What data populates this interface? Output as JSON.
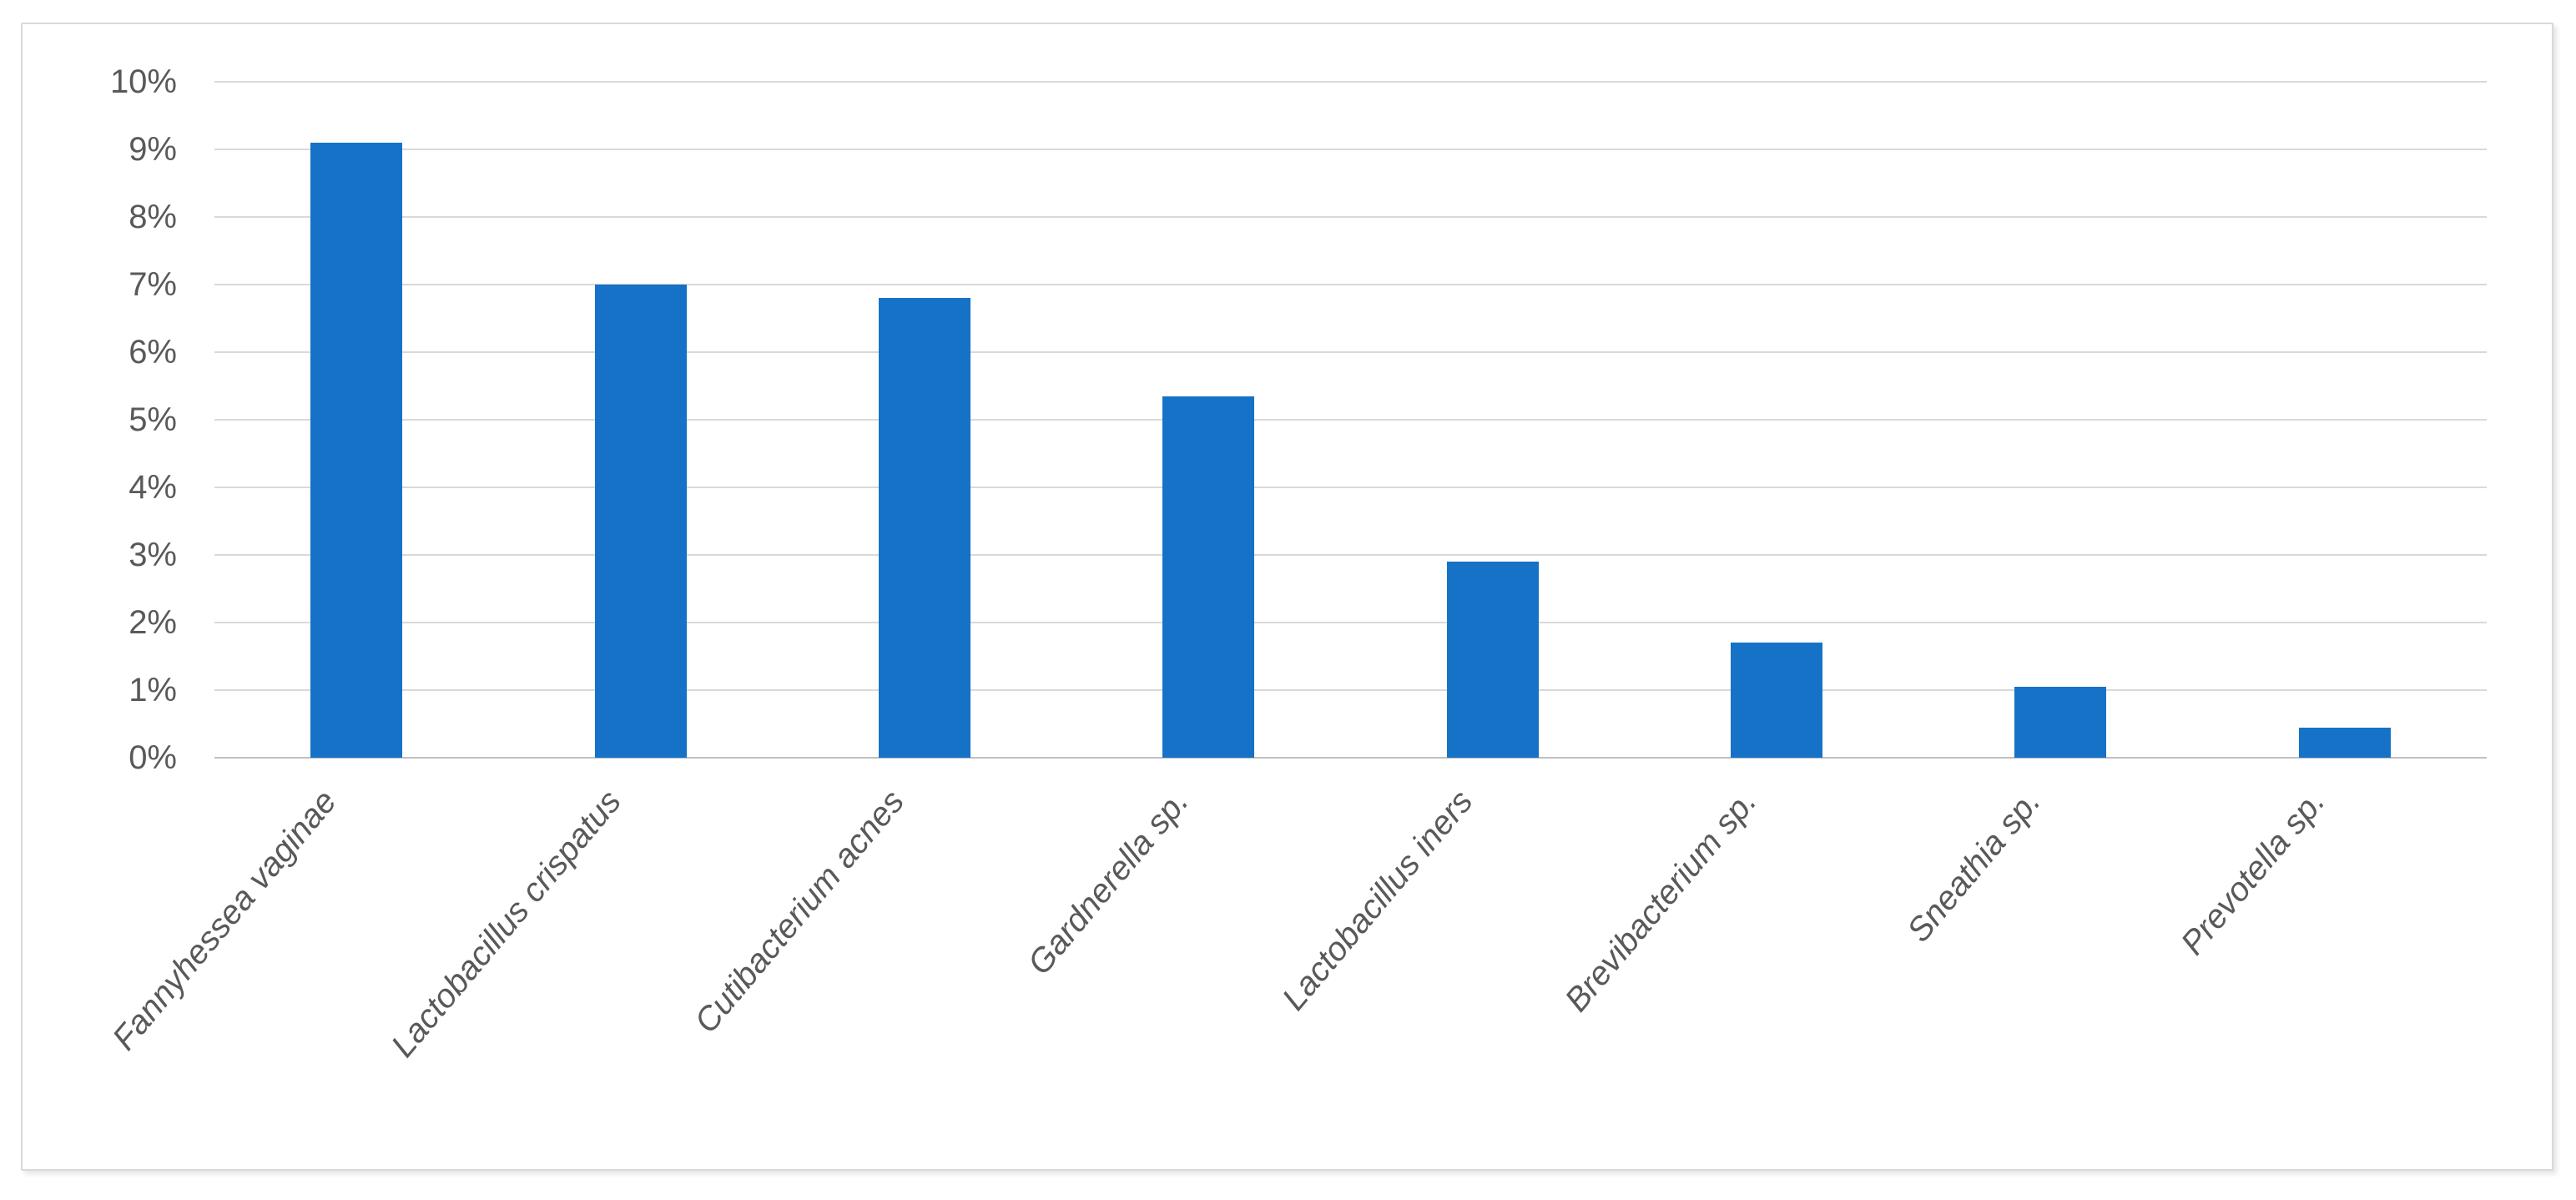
{
  "chart_data": {
    "type": "bar",
    "title": "",
    "xlabel": "",
    "ylabel": "",
    "categories": [
      "Fannyhessea vaginae",
      "Lactobacillus crispatus",
      "Cutibacterium acnes",
      "Gardnerella sp.",
      "Lactobacillus iners",
      "Brevibacterium sp.",
      "Sneathia sp.",
      "Prevotella sp."
    ],
    "values": [
      9.1,
      7.0,
      6.8,
      5.35,
      2.9,
      1.7,
      1.05,
      0.45
    ],
    "unit": "%",
    "ylim": [
      0,
      10
    ],
    "y_tick_step": 1,
    "y_ticks": [
      "10%",
      "9%",
      "8%",
      "7%",
      "6%",
      "5%",
      "4%",
      "3%",
      "2%",
      "1%",
      "0%"
    ],
    "grid": "horizontal",
    "legend_position": "none",
    "category_label_style": "italic, rotated diagonal",
    "colors": {
      "bar": "#1572C6",
      "gridline": "#D9D9D9",
      "axis_line": "#BFBFBF",
      "tick_label": "#595959",
      "frame_border": "#D9D9D9",
      "background": "#FFFFFF"
    }
  }
}
